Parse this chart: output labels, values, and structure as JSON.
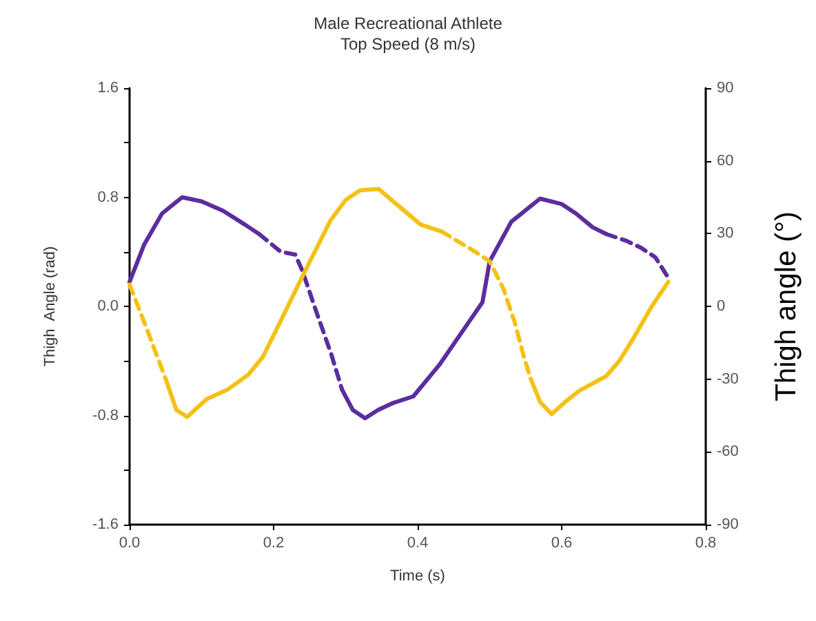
{
  "chart_data": {
    "type": "line",
    "title": "Male Recreational Athlete",
    "subtitle": "Top Speed (8 m/s)",
    "xlabel": "Time (s)",
    "ylabel": "Thigh  Angle (rad)",
    "y2label": "Thigh angle (°)",
    "xlim": [
      0,
      0.8
    ],
    "xticks": [
      {
        "value": 0,
        "label": "0.0"
      },
      {
        "value": 0.2,
        "label": "0.2"
      },
      {
        "value": 0.4,
        "label": "0.4"
      },
      {
        "value": 0.6,
        "label": "0.6"
      },
      {
        "value": 0.8,
        "label": "0.8"
      }
    ],
    "ylim": [
      -1.6,
      1.6
    ],
    "yticks": [
      {
        "value": -1.6,
        "label": "-1.6"
      },
      {
        "value": -1.2,
        "label": null
      },
      {
        "value": -0.8,
        "label": "-0.8"
      },
      {
        "value": -0.4,
        "label": null
      },
      {
        "value": 0,
        "label": "0.0"
      },
      {
        "value": 0.4,
        "label": null
      },
      {
        "value": 0.8,
        "label": "0.8"
      },
      {
        "value": 1.2,
        "label": null
      },
      {
        "value": 1.6,
        "label": "1.6"
      }
    ],
    "y2lim": [
      -90,
      90
    ],
    "y2ticks": [
      -90,
      -60,
      -30,
      0,
      30,
      60,
      90
    ],
    "grid": false,
    "marker": "none",
    "series": [
      {
        "color": "#5b2d9e",
        "line_style": "solid",
        "x": [
          0,
          0.02,
          0.045,
          0.073,
          0.1,
          0.13,
          0.16,
          0.18
        ],
        "values": [
          0.18,
          0.45,
          0.68,
          0.8,
          0.77,
          0.7,
          0.6,
          0.53
        ]
      },
      {
        "color": "#5b2d9e",
        "line_style": "dashed",
        "x": [
          0.18,
          0.21,
          0.23,
          0.24,
          0.26,
          0.28,
          0.295
        ],
        "values": [
          0.53,
          0.4,
          0.38,
          0.26,
          -0.05,
          -0.35,
          -0.61
        ]
      },
      {
        "color": "#5b2d9e",
        "line_style": "solid",
        "x": [
          0.295,
          0.31,
          0.327,
          0.345,
          0.365,
          0.394,
          0.43,
          0.46,
          0.49,
          0.5,
          0.53,
          0.57,
          0.6,
          0.62,
          0.643,
          0.662
        ],
        "values": [
          -0.61,
          -0.76,
          -0.82,
          -0.76,
          -0.71,
          -0.66,
          -0.43,
          -0.2,
          0.03,
          0.33,
          0.62,
          0.79,
          0.75,
          0.68,
          0.58,
          0.53
        ]
      },
      {
        "color": "#5b2d9e",
        "line_style": "dashed",
        "x": [
          0.662,
          0.69,
          0.71,
          0.73,
          0.748
        ],
        "values": [
          0.53,
          0.48,
          0.43,
          0.36,
          0.21
        ]
      },
      {
        "color": "#f5c116",
        "line_style": "dashed",
        "x": [
          0,
          0.025,
          0.05
        ],
        "values": [
          0.16,
          -0.18,
          -0.53
        ]
      },
      {
        "color": "#f5c116",
        "line_style": "solid",
        "x": [
          0.05,
          0.065,
          0.08,
          0.107,
          0.136,
          0.165,
          0.185,
          0.203,
          0.241,
          0.279,
          0.3,
          0.32,
          0.346,
          0.375,
          0.404,
          0.433
        ],
        "values": [
          -0.53,
          -0.76,
          -0.81,
          -0.68,
          -0.61,
          -0.5,
          -0.37,
          -0.18,
          0.23,
          0.63,
          0.78,
          0.85,
          0.86,
          0.73,
          0.6,
          0.55
        ]
      },
      {
        "color": "#f5c116",
        "line_style": "dashed",
        "x": [
          0.433,
          0.48,
          0.5,
          0.519,
          0.535,
          0.548,
          0.557
        ],
        "values": [
          0.55,
          0.4,
          0.33,
          0.13,
          -0.12,
          -0.38,
          -0.53
        ]
      },
      {
        "color": "#f5c116",
        "line_style": "solid",
        "x": [
          0.557,
          0.57,
          0.586,
          0.605,
          0.624,
          0.662,
          0.68,
          0.7,
          0.725,
          0.748
        ],
        "values": [
          -0.53,
          -0.7,
          -0.79,
          -0.7,
          -0.62,
          -0.51,
          -0.4,
          -0.23,
          0.0,
          0.18
        ]
      }
    ]
  }
}
